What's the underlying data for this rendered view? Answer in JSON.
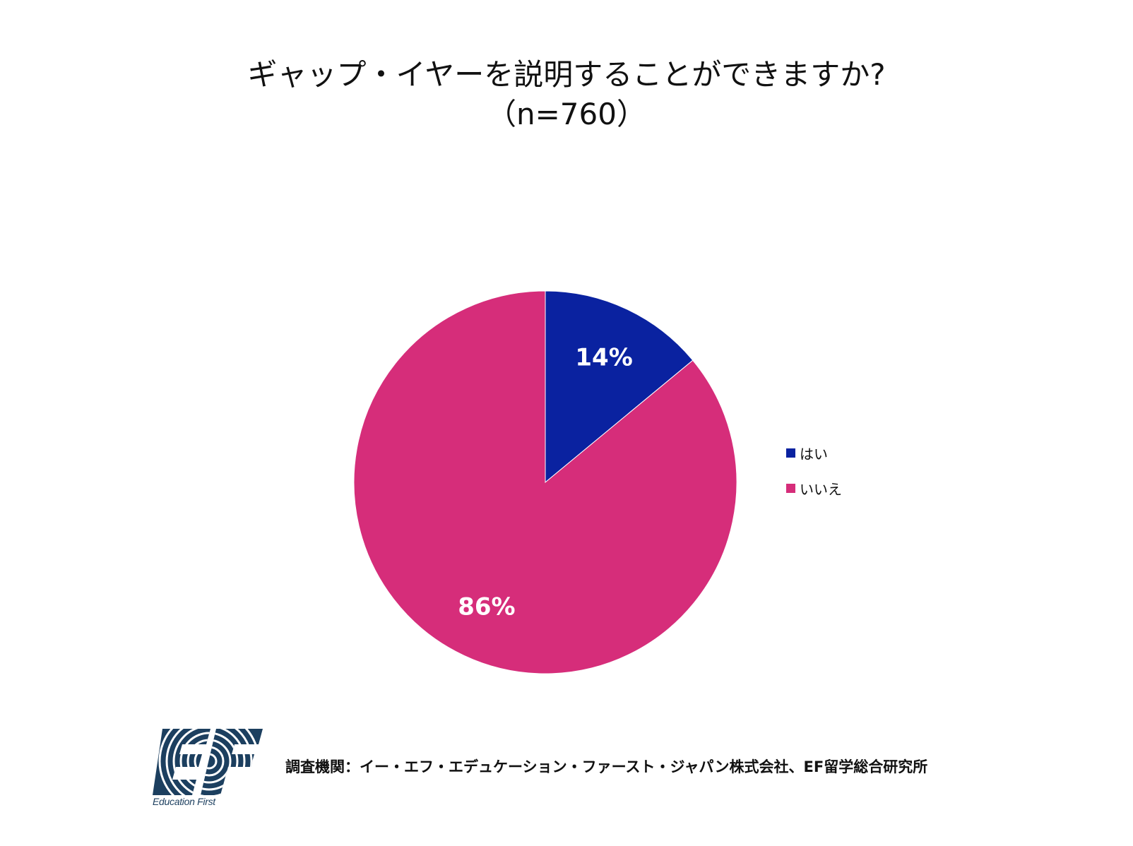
{
  "chart_data": {
    "type": "pie",
    "title": "ギャップ・イヤーを説明することができますか?",
    "subtitle": "（n=760）",
    "categories": [
      "はい",
      "いいえ"
    ],
    "values": [
      14,
      86
    ],
    "data_labels": [
      "14%",
      "86%"
    ],
    "colors": [
      "#0a22a0",
      "#d62d7a"
    ],
    "legend": "right",
    "label_color": "#ffffff"
  },
  "footer": {
    "source": "調査機関：イー・エフ・エデュケーション・ファースト・ジャパン株式会社、EF留学総合研究所",
    "logo_caption": "Education First",
    "logo_color": "#1c3f5f"
  }
}
